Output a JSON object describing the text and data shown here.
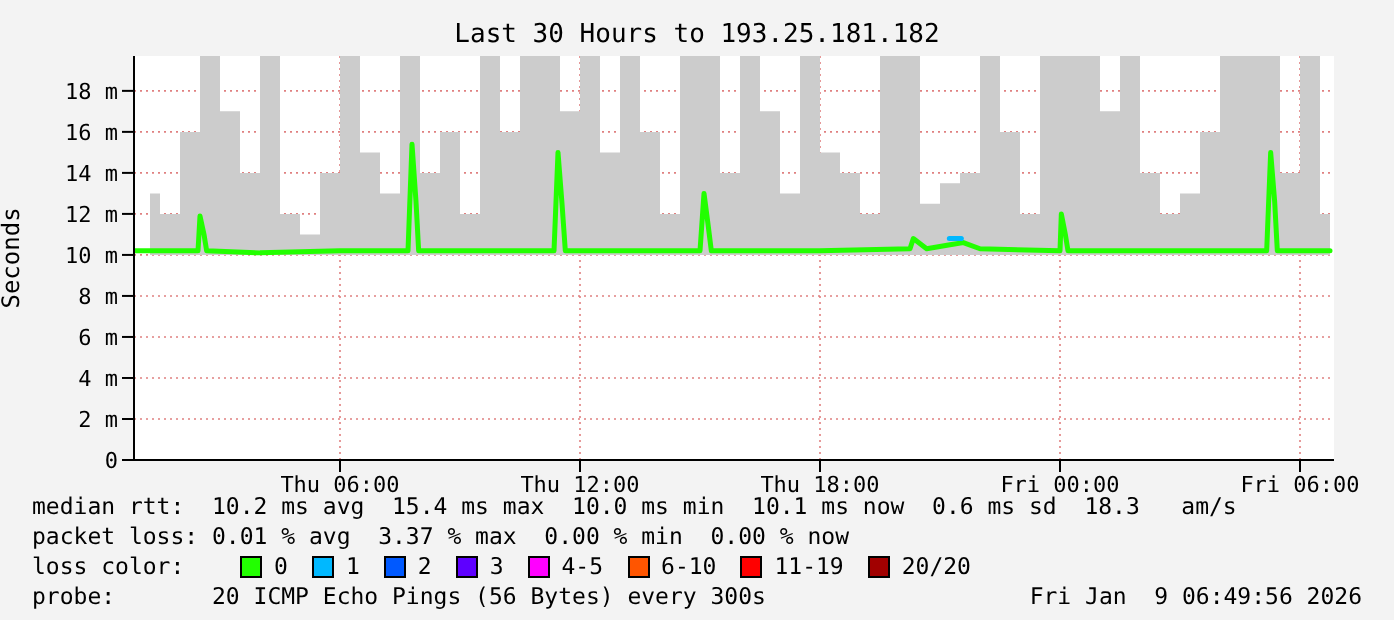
{
  "chart_data": {
    "type": "line",
    "title": "Last 30 Hours to 193.25.181.182",
    "ylabel": "Seconds",
    "xlim": [
      "2026-01-08T00:51",
      "2026-01-09T06:51"
    ],
    "xticks": [
      {
        "value": "2026-01-08T06:00",
        "label": "Thu 06:00"
      },
      {
        "value": "2026-01-08T12:00",
        "label": "Thu 12:00"
      },
      {
        "value": "2026-01-08T18:00",
        "label": "Thu 18:00"
      },
      {
        "value": "2026-01-09T00:00",
        "label": "Fri 00:00"
      },
      {
        "value": "2026-01-09T06:00",
        "label": "Fri 06:00"
      }
    ],
    "ylim": [
      0,
      19.7
    ],
    "yticks": [
      0,
      {
        "value": 2,
        "label": "2 m"
      },
      {
        "value": 4,
        "label": "4 m"
      },
      {
        "value": 6,
        "label": "6 m"
      },
      {
        "value": 8,
        "label": "8 m"
      },
      {
        "value": 10,
        "label": "10 m"
      },
      {
        "value": 12,
        "label": "12 m"
      },
      {
        "value": 14,
        "label": "14 m"
      },
      {
        "value": 16,
        "label": "16 m"
      },
      {
        "value": 18,
        "label": "18 m"
      }
    ],
    "grid": true,
    "legend": "bottom",
    "legend_title": "loss color:",
    "series": [
      {
        "type": "area",
        "color": "#cccccc",
        "x": [
          "2026-01-08T01:15",
          "2026-01-08T01:45",
          "2026-01-08T02:15",
          "2026-01-08T02:45",
          "2026-01-08T03:15",
          "2026-01-08T03:45",
          "2026-01-08T04:15",
          "2026-01-08T04:45",
          "2026-01-08T05:15",
          "2026-01-08T05:45",
          "2026-01-08T06:15",
          "2026-01-08T06:45",
          "2026-01-08T07:15",
          "2026-01-08T07:45",
          "2026-01-08T08:15",
          "2026-01-08T08:45",
          "2026-01-08T09:15",
          "2026-01-08T09:45",
          "2026-01-08T10:15",
          "2026-01-08T10:45",
          "2026-01-08T11:15",
          "2026-01-08T11:45",
          "2026-01-08T12:15",
          "2026-01-08T12:45",
          "2026-01-08T13:15",
          "2026-01-08T13:45",
          "2026-01-08T14:15",
          "2026-01-08T14:45",
          "2026-01-08T15:15",
          "2026-01-08T15:45",
          "2026-01-08T16:15",
          "2026-01-08T16:45",
          "2026-01-08T17:15",
          "2026-01-08T17:45",
          "2026-01-08T18:15",
          "2026-01-08T18:45",
          "2026-01-08T19:15",
          "2026-01-08T19:45",
          "2026-01-08T20:15",
          "2026-01-08T20:45",
          "2026-01-08T21:15",
          "2026-01-08T21:45",
          "2026-01-08T22:15",
          "2026-01-08T22:45",
          "2026-01-08T23:15",
          "2026-01-08T23:45",
          "2026-01-09T00:15",
          "2026-01-09T00:45",
          "2026-01-09T01:15",
          "2026-01-09T01:45",
          "2026-01-09T02:15",
          "2026-01-09T02:45",
          "2026-01-09T03:15",
          "2026-01-09T03:45",
          "2026-01-09T04:15",
          "2026-01-09T04:45",
          "2026-01-09T05:15",
          "2026-01-09T05:45",
          "2026-01-09T06:15",
          "2026-01-09T06:45"
        ],
        "values": [
          null,
          null,
          null,
          null,
          null,
          null,
          null,
          null,
          null,
          null,
          null,
          null,
          null,
          null,
          null,
          null,
          null,
          null,
          null,
          null,
          null,
          null,
          null,
          null,
          null,
          null,
          null,
          null,
          null,
          null,
          null,
          null,
          null,
          null,
          null,
          null,
          null,
          null,
          null,
          null,
          null,
          null,
          null,
          null,
          null,
          null,
          null,
          null,
          null,
          null,
          null,
          null,
          null,
          null,
          null,
          null,
          null,
          null,
          null,
          null
        ],
        "lower": [
          10,
          10,
          10,
          10,
          10,
          10,
          10,
          10,
          10,
          10,
          10,
          10,
          10,
          10,
          10,
          10,
          10,
          10,
          10,
          10,
          10,
          10,
          10,
          10,
          10,
          10,
          10,
          10,
          10,
          10,
          10,
          10,
          10,
          10,
          10,
          10,
          10,
          10,
          10,
          10,
          10,
          10,
          10,
          10,
          10,
          10,
          10,
          10,
          10,
          10,
          10,
          10,
          10,
          10,
          10,
          10,
          10,
          10,
          10,
          10
        ],
        "upper": [
          13,
          12,
          16,
          19.7,
          17,
          14,
          19.7,
          12,
          11,
          14,
          19.7,
          15,
          13,
          19.7,
          14,
          16,
          12,
          19.7,
          16,
          19.7,
          19.7,
          17,
          19.7,
          15,
          19.7,
          16,
          12,
          19.7,
          19.7,
          14,
          19.7,
          17,
          13,
          19.7,
          15,
          14,
          12,
          19.7,
          19.7,
          12.5,
          13.5,
          14,
          19.7,
          16,
          12,
          19.7,
          19.7,
          19.7,
          17,
          19.7,
          14,
          12,
          13,
          16,
          19.7,
          19.7,
          19.7,
          14,
          19.7,
          12
        ]
      },
      {
        "name": "0",
        "color": "#22ff00",
        "x": [
          "2026-01-08T00:51",
          "2026-01-08T02:00",
          "2026-01-08T02:27",
          "2026-01-08T02:30",
          "2026-01-08T02:36",
          "2026-01-08T02:40",
          "2026-01-08T04:00",
          "2026-01-08T06:00",
          "2026-01-08T07:42",
          "2026-01-08T07:48",
          "2026-01-08T07:54",
          "2026-01-08T07:58",
          "2026-01-08T09:00",
          "2026-01-08T11:21",
          "2026-01-08T11:27",
          "2026-01-08T11:33",
          "2026-01-08T11:38",
          "2026-01-08T13:00",
          "2026-01-08T15:00",
          "2026-01-08T15:06",
          "2026-01-08T15:12",
          "2026-01-08T15:17",
          "2026-01-08T18:00",
          "2026-01-08T20:15",
          "2026-01-08T20:20",
          "2026-01-08T20:40",
          "2026-01-08T21:15",
          "2026-01-08T21:35",
          "2026-01-08T22:00",
          "2026-01-09T00:00",
          "2026-01-09T00:02",
          "2026-01-09T00:08",
          "2026-01-09T00:12",
          "2026-01-09T03:00",
          "2026-01-09T05:10",
          "2026-01-09T05:16",
          "2026-01-09T05:22",
          "2026-01-09T05:26",
          "2026-01-09T06:45"
        ],
        "values": [
          10.2,
          10.2,
          10.2,
          11.9,
          11,
          10.2,
          10.1,
          10.2,
          10.2,
          15.4,
          12.6,
          10.2,
          10.2,
          10.2,
          15,
          12.5,
          10.2,
          10.2,
          10.2,
          13,
          11.5,
          10.2,
          10.2,
          10.3,
          10.8,
          10.3,
          10.5,
          10.6,
          10.3,
          10.2,
          12,
          11,
          10.2,
          10.2,
          10.2,
          15,
          12.6,
          10.2,
          10.2
        ]
      },
      {
        "name": "1",
        "color": "#00b8ff",
        "x": [
          "2026-01-08T21:14",
          "2026-01-08T21:32"
        ],
        "values": [
          10.8,
          10.8
        ]
      },
      {
        "name": "2",
        "color": "#0059ff"
      },
      {
        "name": "3",
        "color": "#5e00ff"
      },
      {
        "name": "4-5",
        "color": "#ff00ff"
      },
      {
        "name": "6-10",
        "color": "#ff5500"
      },
      {
        "name": "11-19",
        "color": "#ff0000"
      },
      {
        "name": "20/20",
        "color": "#a10000"
      }
    ],
    "annotations": [
      "median rtt:  10.2 ms avg  15.4 ms max  10.0 ms min  10.1 ms now  0.6 ms sd  18.3   am/s",
      "packet loss: 0.01 % avg  3.37 % max  0.00 % min  0.00 % now",
      "probe:       20 ICMP Echo Pings (56 Bytes) every 300s",
      "Fri Jan  9 06:49:56 2026"
    ]
  }
}
